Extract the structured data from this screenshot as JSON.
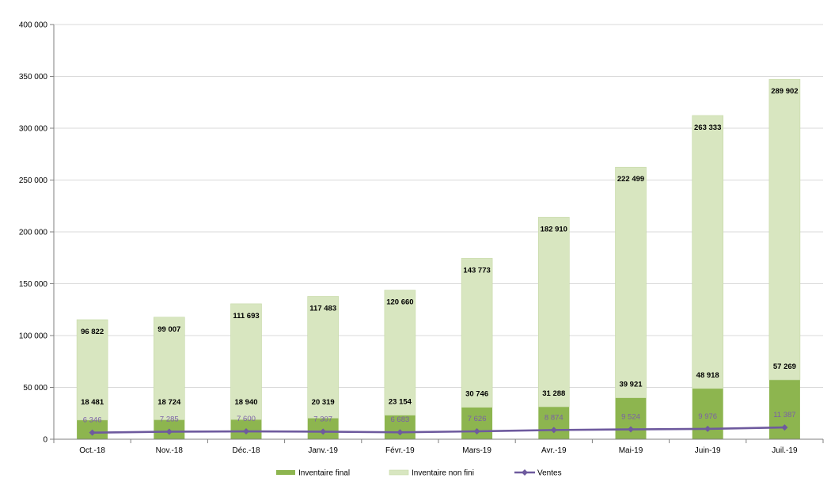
{
  "chart_data": {
    "type": "bar",
    "stacked": true,
    "categories": [
      "Oct.-18",
      "Nov.-18",
      "Déc.-18",
      "Janv.-19",
      "Févr.-19",
      "Mars-19",
      "Avr.-19",
      "Mai-19",
      "Juin-19",
      "Juil.-19"
    ],
    "series": [
      {
        "name": "Inventaire final",
        "type": "bar",
        "color": "#8db54f",
        "values": [
          18481,
          18724,
          18940,
          20319,
          23154,
          30746,
          31288,
          39921,
          48918,
          57269
        ],
        "labels": [
          "18 481",
          "18 724",
          "18 940",
          "20 319",
          "23 154",
          "30 746",
          "31 288",
          "39 921",
          "48 918",
          "57 269"
        ]
      },
      {
        "name": "Inventaire non fini",
        "type": "bar",
        "color": "#d8e6c0",
        "values": [
          96822,
          99007,
          111693,
          117483,
          120660,
          143773,
          182910,
          222499,
          263333,
          289902
        ],
        "labels": [
          "96 822",
          "99 007",
          "111 693",
          "117 483",
          "120 660",
          "143 773",
          "182 910",
          "222 499",
          "263 333",
          "289 902"
        ]
      },
      {
        "name": "Ventes",
        "type": "line",
        "color": "#6e5a9e",
        "values": [
          6346,
          7285,
          7600,
          7307,
          6683,
          7626,
          8874,
          9524,
          9976,
          11387
        ],
        "labels": [
          "6 346",
          "7 285",
          "7 600",
          "7 307",
          "6 683",
          "7 626",
          "8 874",
          "9 524",
          "9 976",
          "11 387"
        ]
      }
    ],
    "ylim": [
      0,
      400000
    ],
    "yticks": [
      0,
      50000,
      100000,
      150000,
      200000,
      250000,
      300000,
      350000,
      400000
    ],
    "ytick_labels": [
      "0",
      "50 000",
      "100 000",
      "150 000",
      "200 000",
      "250 000",
      "300 000",
      "350 000",
      "400 000"
    ],
    "grid": true,
    "legend_position": "bottom",
    "title": "",
    "xlabel": "",
    "ylabel": ""
  }
}
